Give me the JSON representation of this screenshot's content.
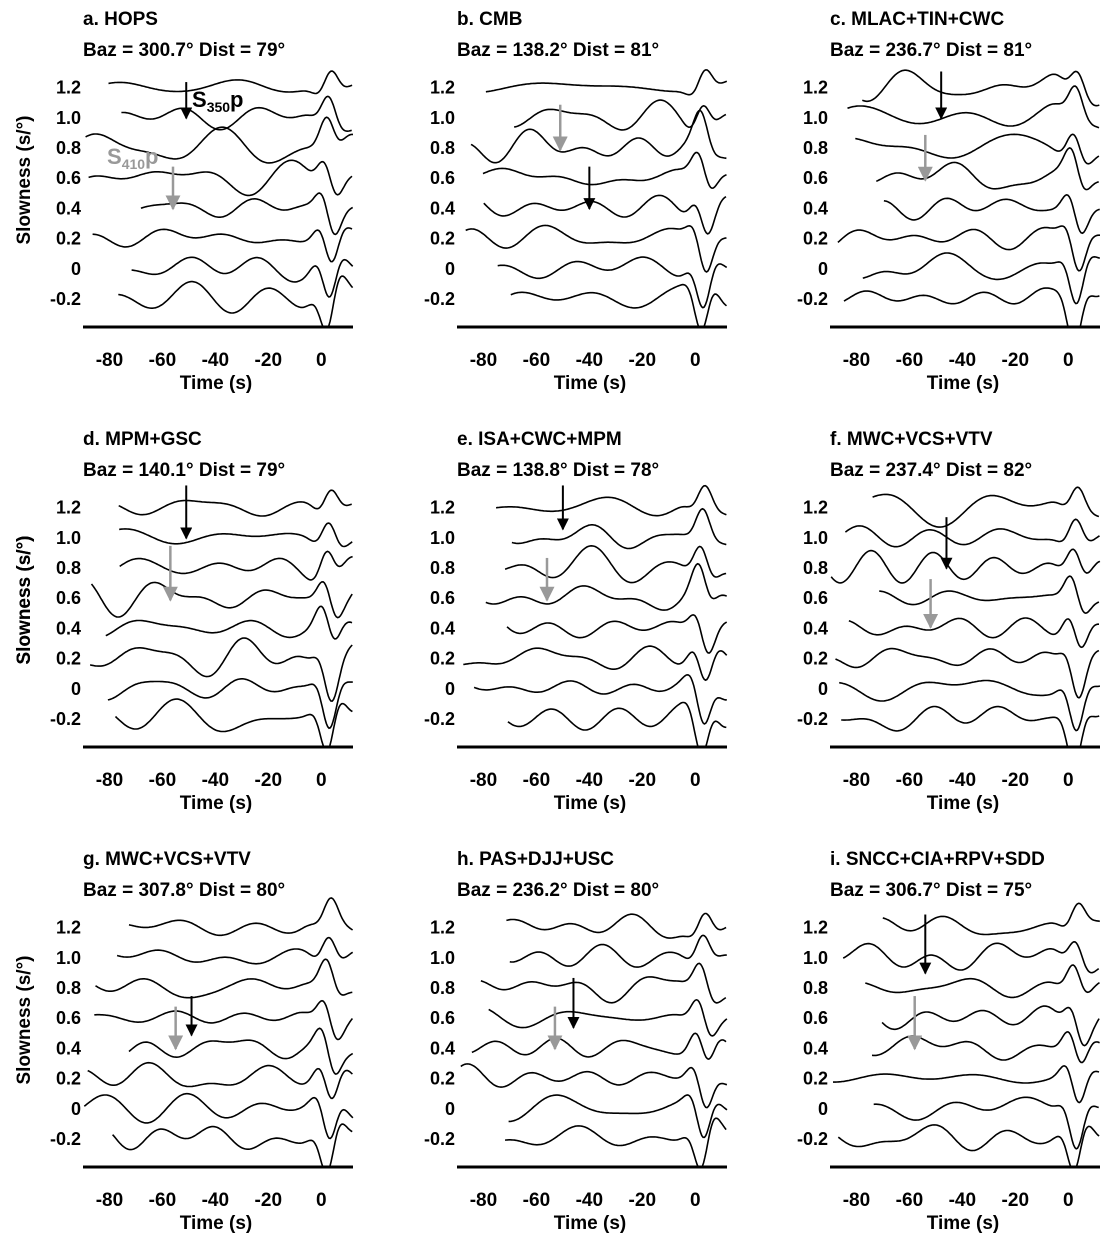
{
  "figure": {
    "ylabel": "Slowness (s/°)",
    "xlabel": "Time (s)",
    "annotation_black": "S350p",
    "annotation_gray": "S410p",
    "colors": {
      "trace": "#000000",
      "s350p_arrow": "#000000",
      "s410p_arrow": "#999999"
    }
  },
  "chart_data": [
    {
      "type": "line",
      "panel": "a",
      "title": "a. HOPS",
      "subtitle": "Baz = 300.7° Dist = 79°",
      "xlabel": "Time (s)",
      "ylabel": "Slowness (s/°)",
      "xlim": [
        -90,
        12
      ],
      "ylim": [
        -0.3,
        1.3
      ],
      "xticks": [
        -80,
        -60,
        -40,
        -20,
        0
      ],
      "yticks": [
        1.2,
        1.0,
        0.8,
        0.6,
        0.4,
        0.2,
        0,
        -0.2
      ],
      "ytick_labels": [
        "1.2",
        "1.0",
        "0.8",
        "0.6",
        "0.4",
        "0.2",
        "0",
        "-0.2"
      ],
      "s350p": {
        "time": -51,
        "from": 1.23,
        "to": 0.99
      },
      "s410p": {
        "time": -56,
        "from": 0.67,
        "to": 0.39
      },
      "show_ylabel": true,
      "show_phase_labels": true
    },
    {
      "type": "line",
      "panel": "b",
      "title": "b. CMB",
      "subtitle": "Baz = 138.2° Dist = 81°",
      "xlabel": "Time (s)",
      "ylabel": "",
      "xlim": [
        -90,
        12
      ],
      "ylim": [
        -0.3,
        1.3
      ],
      "xticks": [
        -80,
        -60,
        -40,
        -20,
        0
      ],
      "yticks": [
        1.2,
        1.0,
        0.8,
        0.6,
        0.4,
        0.2,
        0,
        -0.2
      ],
      "ytick_labels": [
        "1.2",
        "1.0",
        "0.8",
        "0.6",
        "0.4",
        "0.2",
        "0",
        "-0.2"
      ],
      "s350p": {
        "time": -40,
        "from": 0.67,
        "to": 0.39
      },
      "s410p": {
        "time": -51,
        "from": 1.08,
        "to": 0.78
      },
      "show_ylabel": false,
      "show_phase_labels": false
    },
    {
      "type": "line",
      "panel": "c",
      "title": "c. MLAC+TIN+CWC",
      "subtitle": "Baz = 236.7° Dist = 81°",
      "xlabel": "Time (s)",
      "ylabel": "",
      "xlim": [
        -90,
        12
      ],
      "ylim": [
        -0.3,
        1.3
      ],
      "xticks": [
        -80,
        -60,
        -40,
        -20,
        0
      ],
      "yticks": [
        1.2,
        1.0,
        0.8,
        0.6,
        0.4,
        0.2,
        0,
        -0.2
      ],
      "ytick_labels": [
        "1.2",
        "1.0",
        "0.8",
        "0.6",
        "0.4",
        "0.2",
        "0",
        "-0.2"
      ],
      "s350p": {
        "time": -48,
        "from": 1.3,
        "to": 0.99
      },
      "s410p": {
        "time": -54,
        "from": 0.88,
        "to": 0.58
      },
      "show_ylabel": false,
      "show_phase_labels": false
    },
    {
      "type": "line",
      "panel": "d",
      "title": "d. MPM+GSC",
      "subtitle": "Baz = 140.1° Dist = 79°",
      "xlabel": "Time (s)",
      "ylabel": "Slowness (s/°)",
      "xlim": [
        -90,
        12
      ],
      "ylim": [
        -0.3,
        1.3
      ],
      "xticks": [
        -80,
        -60,
        -40,
        -20,
        0
      ],
      "yticks": [
        1.2,
        1.0,
        0.8,
        0.6,
        0.4,
        0.2,
        0,
        -0.2
      ],
      "ytick_labels": [
        "1.2",
        "1.0",
        "0.8",
        "0.6",
        "0.4",
        "0.2",
        "0",
        "-0.2"
      ],
      "s350p": {
        "time": -51,
        "from": 1.34,
        "to": 0.99
      },
      "s410p": {
        "time": -57,
        "from": 0.94,
        "to": 0.58
      },
      "show_ylabel": true,
      "show_phase_labels": false
    },
    {
      "type": "line",
      "panel": "e",
      "title": "e. ISA+CWC+MPM",
      "subtitle": "Baz = 138.8° Dist = 78°",
      "xlabel": "Time (s)",
      "ylabel": "",
      "xlim": [
        -90,
        12
      ],
      "ylim": [
        -0.3,
        1.3
      ],
      "xticks": [
        -80,
        -60,
        -40,
        -20,
        0
      ],
      "yticks": [
        1.2,
        1.0,
        0.8,
        0.6,
        0.4,
        0.2,
        0,
        -0.2
      ],
      "ytick_labels": [
        "1.2",
        "1.0",
        "0.8",
        "0.6",
        "0.4",
        "0.2",
        "0",
        "-0.2"
      ],
      "s350p": {
        "time": -50,
        "from": 1.34,
        "to": 1.05
      },
      "s410p": {
        "time": -56,
        "from": 0.86,
        "to": 0.58
      },
      "show_ylabel": false,
      "show_phase_labels": false
    },
    {
      "type": "line",
      "panel": "f",
      "title": "f. MWC+VCS+VTV",
      "subtitle": "Baz = 237.4° Dist = 82°",
      "xlabel": "Time (s)",
      "ylabel": "Slowness (s/°)",
      "xlim": [
        -90,
        12
      ],
      "ylim": [
        -0.3,
        1.3
      ],
      "xticks": [
        -80,
        -60,
        -40,
        -20,
        0
      ],
      "yticks": [
        1.2,
        1.0,
        0.8,
        0.6,
        0.4,
        0.2,
        0,
        -0.2
      ],
      "ytick_labels": [
        "1.2",
        "1.0",
        "0.8",
        "0.6",
        "0.4",
        "0.2",
        "0",
        "-0.2"
      ],
      "s350p": {
        "time": -46,
        "from": 1.13,
        "to": 0.79
      },
      "s410p": {
        "time": -52,
        "from": 0.72,
        "to": 0.4
      },
      "show_ylabel": true,
      "show_phase_labels": false
    },
    {
      "type": "line",
      "panel": "g",
      "title": "g. MWC+VCS+VTV",
      "subtitle": "Baz = 307.8° Dist = 80°",
      "xlabel": "Time (s)",
      "ylabel": "Slowness (s/°)",
      "xlim": [
        -90,
        12
      ],
      "ylim": [
        -0.3,
        1.3
      ],
      "xticks": [
        -80,
        -60,
        -40,
        -20,
        0
      ],
      "yticks": [
        1.2,
        1.0,
        0.8,
        0.6,
        0.4,
        0.2,
        0,
        -0.2
      ],
      "ytick_labels": [
        "1.2",
        "1.0",
        "0.8",
        "0.6",
        "0.4",
        "0.2",
        "0",
        "-0.2"
      ],
      "s350p": {
        "time": -49,
        "from": 0.74,
        "to": 0.48
      },
      "s410p": {
        "time": -55,
        "from": 0.67,
        "to": 0.39
      },
      "show_ylabel": true,
      "show_phase_labels": false
    },
    {
      "type": "line",
      "panel": "h",
      "title": "h. PAS+DJJ+USC",
      "subtitle": "Baz = 236.2° Dist = 80°",
      "xlabel": "Time (s)",
      "ylabel": "",
      "xlim": [
        -90,
        12
      ],
      "ylim": [
        -0.3,
        1.3
      ],
      "xticks": [
        -80,
        -60,
        -40,
        -20,
        0
      ],
      "yticks": [
        1.2,
        1.0,
        0.8,
        0.6,
        0.4,
        0.2,
        0,
        -0.2
      ],
      "ytick_labels": [
        "1.2",
        "1.0",
        "0.8",
        "0.6",
        "0.4",
        "0.2",
        "0",
        "-0.2"
      ],
      "s350p": {
        "time": -46,
        "from": 0.86,
        "to": 0.53
      },
      "s410p": {
        "time": -53,
        "from": 0.67,
        "to": 0.39
      },
      "show_ylabel": false,
      "show_phase_labels": false
    },
    {
      "type": "line",
      "panel": "i",
      "title": "i. SNCC+CIA+RPV+SDD",
      "subtitle": "Baz = 306.7° Dist = 75°",
      "xlabel": "Time (s)",
      "ylabel": "",
      "xlim": [
        -90,
        12
      ],
      "ylim": [
        -0.3,
        1.3
      ],
      "xticks": [
        -80,
        -60,
        -40,
        -20,
        0
      ],
      "yticks": [
        1.2,
        1.0,
        0.8,
        0.6,
        0.4,
        0.2,
        0,
        -0.2
      ],
      "ytick_labels": [
        "1.2",
        "1.0",
        "0.8",
        "0.6",
        "0.4",
        "0.2",
        "0",
        "-0.2"
      ],
      "s350p": {
        "time": -54,
        "from": 1.28,
        "to": 0.89
      },
      "s410p": {
        "time": -58,
        "from": 0.74,
        "to": 0.39
      },
      "show_ylabel": false,
      "show_phase_labels": false
    }
  ]
}
